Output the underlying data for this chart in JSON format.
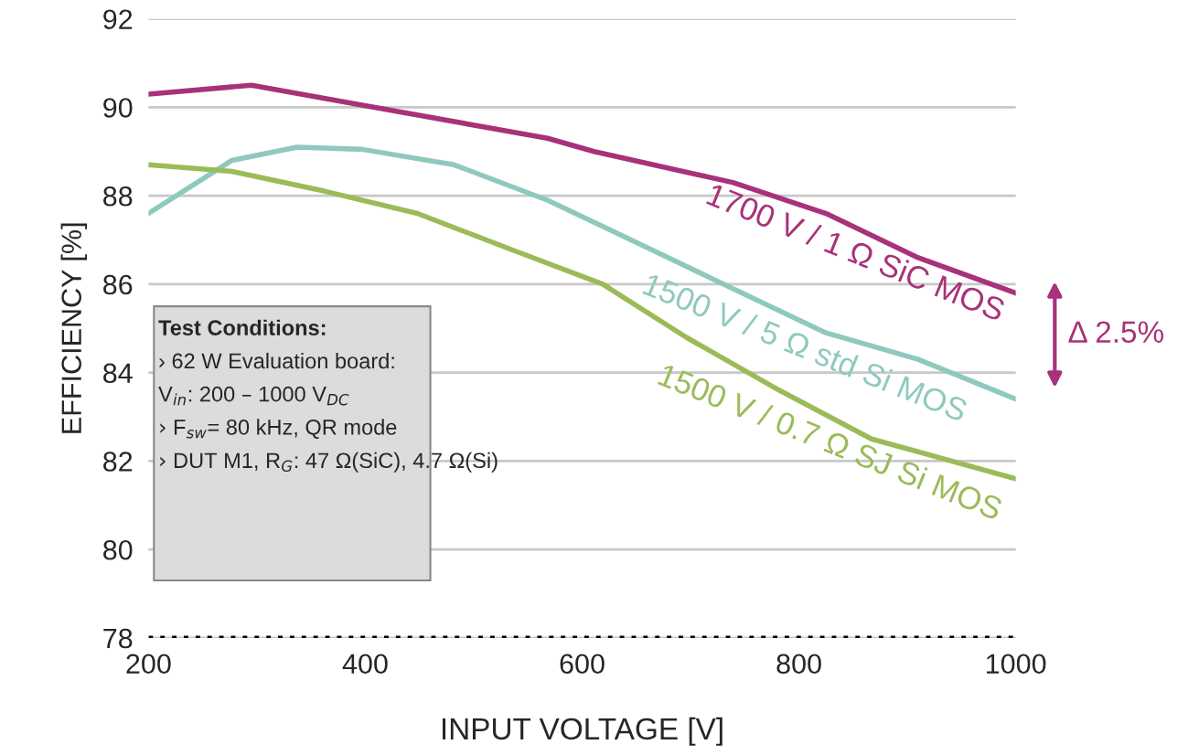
{
  "chart_data": {
    "type": "line",
    "xlabel": "INPUT VOLTAGE [V]",
    "ylabel": "EFFICIENCY [%]",
    "xlim": [
      200,
      1000
    ],
    "xticks": [
      200,
      400,
      600,
      800,
      1000
    ],
    "ylim": [
      78,
      92
    ],
    "yticks": [
      78,
      80,
      82,
      84,
      86,
      88,
      90,
      92
    ],
    "grid": "y",
    "legend": false,
    "marker": "none",
    "line_style": "solid",
    "series": [
      {
        "name": "1700 V / 1 Ω SiC MOS",
        "color": "#a8327a",
        "x": [
          200,
          295,
          397,
          568,
          611,
          739,
          825,
          910,
          1000
        ],
        "values": [
          90.3,
          90.5,
          90.05,
          89.3,
          89.0,
          88.3,
          87.6,
          86.6,
          85.8
        ]
      },
      {
        "name": "1500 V / 5 Ω std Si MOS",
        "color": "#8fc9bd",
        "x": [
          200,
          277,
          337,
          397,
          482,
          568,
          654,
          739,
          825,
          910,
          1000
        ],
        "values": [
          87.6,
          88.8,
          89.1,
          89.05,
          88.7,
          87.9,
          86.9,
          85.9,
          84.9,
          84.3,
          83.4
        ]
      },
      {
        "name": "1500 V / 0.7 Ω SJ Si MOS",
        "color": "#9bbb59",
        "x": [
          200,
          277,
          363,
          448,
          533,
          619,
          696,
          782,
          867,
          1000
        ],
        "values": [
          88.7,
          88.55,
          88.1,
          87.6,
          86.8,
          86.0,
          84.8,
          83.6,
          82.5,
          81.6
        ]
      }
    ],
    "ref_lines": [
      {
        "axis": "y",
        "value": 78,
        "color": "#000000",
        "line_style": "dotted"
      }
    ],
    "annotations": [
      "Δ 2.5%",
      "Test Conditions:",
      "› 62 W Evaluation board:",
      "V$_{in}$: 200 – 1000 V$_{DC}$",
      "› F$_{sw}$= 80 kHz, QR mode",
      "› DUT M1, R$_{G}$: 47 Ω(SiC), 4.7 Ω(Si)"
    ]
  }
}
